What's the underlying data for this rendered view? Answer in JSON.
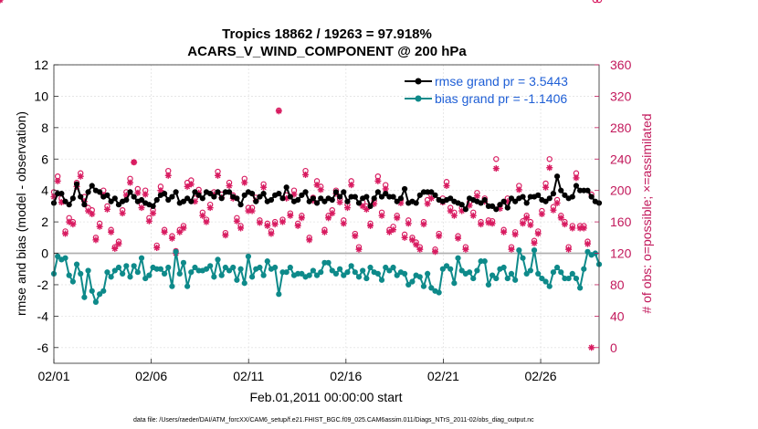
{
  "chart_data": {
    "type": "line",
    "title_line1": "Tropics 18862 / 19263 = 97.918%",
    "title_line2": "ACARS_V_WIND_COMPONENT @ 200 hPa",
    "xlabel": "Feb.01,2011 00:00:00 start",
    "ylabel": "rmse and bias (model - observation)",
    "y2label": "# of obs: o=possible; ×=assimilated",
    "footer": "data file: /Users/raeder/DAI/ATM_forcXX/CAM6_setup/f.e21.FHIST_BGC.f09_025.CAM6assim.011/Diags_NTrS_2011-02/obs_diag_output.nc",
    "xticks": [
      "02/01",
      "02/06",
      "02/11",
      "02/16",
      "02/21",
      "02/26"
    ],
    "xtick_days": [
      0,
      5,
      10,
      15,
      20,
      25
    ],
    "xlim": [
      0,
      28
    ],
    "ylim": [
      -7,
      12
    ],
    "yticks": [
      "12",
      "10",
      "8",
      "6",
      "4",
      "2",
      "0",
      "-2",
      "-4",
      "-6"
    ],
    "ytick_values": [
      12,
      10,
      8,
      6,
      4,
      2,
      0,
      -2,
      -4,
      -6
    ],
    "y2lim": [
      -20,
      360
    ],
    "y2ticks": [
      "360",
      "320",
      "280",
      "240",
      "200",
      "160",
      "120",
      "80",
      "40",
      "0"
    ],
    "y2tick_values": [
      360,
      320,
      280,
      240,
      200,
      160,
      120,
      80,
      40,
      0
    ],
    "legend": [
      {
        "label": "rmse grand pr = 3.5443",
        "color": "#000000"
      },
      {
        "label": "bias grand pr = -1.1406",
        "color": "#0e8a8a"
      }
    ],
    "colors": {
      "rmse": "#000000",
      "bias": "#0e8a8a",
      "obs": "#d81b60",
      "zero": "#b0b0b0"
    },
    "series": [
      {
        "name": "rmse",
        "values": [
          3.2,
          3.8,
          3.8,
          3.3,
          3.1,
          3.5,
          4.4,
          3.6,
          3.1,
          3.9,
          4.3,
          4.0,
          3.9,
          3.6,
          3.7,
          3.3,
          3.5,
          3.1,
          3.3,
          3.4,
          3.9,
          3.6,
          3.3,
          3.4,
          3.2,
          3.1,
          3.0,
          3.4,
          3.7,
          3.8,
          3.4,
          3.6,
          3.9,
          3.2,
          3.3,
          3.5,
          3.3,
          3.9,
          3.7,
          3.5,
          3.9,
          3.8,
          3.6,
          3.9,
          3.5,
          3.9,
          3.9,
          3.6,
          3.5,
          3.1,
          3.7,
          3.9,
          3.8,
          3.3,
          3.6,
          3.8,
          3.3,
          3.4,
          3.7,
          3.8,
          3.5,
          4.2,
          3.6,
          3.3,
          3.4,
          3.7,
          3.9,
          3.3,
          3.5,
          3.2,
          3.5,
          3.3,
          3.5,
          3.4,
          3.9,
          3.6,
          3.9,
          3.3,
          3.6,
          3.6,
          3.2,
          3.5,
          3.6,
          3.0,
          3.5,
          3.9,
          3.6,
          3.8,
          3.6,
          3.6,
          3.3,
          3.5,
          4.1,
          3.2,
          3.3,
          3.2,
          3.7,
          3.9,
          3.9,
          3.9,
          3.7,
          3.4,
          3.3,
          3.4,
          3.5,
          3.3,
          3.2,
          3.1,
          2.8,
          3.5,
          3.4,
          3.3,
          3.2,
          3.4,
          3.0,
          3.0,
          2.8,
          3.1,
          3.3,
          2.9,
          3.5,
          3.3,
          3.5,
          3.6,
          3.2,
          3.6,
          3.6,
          3.7,
          3.4,
          3.3,
          3.5,
          3.8,
          4.9,
          4.0,
          3.7,
          3.5,
          3.6,
          4.3,
          4.0,
          4.0,
          4.0,
          3.6,
          3.3,
          3.2
        ]
      },
      {
        "name": "bias",
        "values": [
          -1.3,
          -0.2,
          -0.4,
          -0.3,
          -1.4,
          -1.8,
          -0.7,
          -1.3,
          -2.8,
          -1.1,
          -2.4,
          -3.1,
          -2.6,
          -2.4,
          -1.2,
          -1.5,
          -1.1,
          -0.9,
          -1.3,
          -0.8,
          -1.5,
          -0.8,
          -1.2,
          -0.3,
          -1.6,
          -1.4,
          -0.9,
          -1.0,
          -1.0,
          -1.3,
          -0.9,
          -2.1,
          0.1,
          -1.3,
          -0.6,
          -2.1,
          -1.2,
          -0.9,
          -1.1,
          -1.1,
          -1.0,
          -0.8,
          -1.5,
          -0.4,
          -1.4,
          -0.9,
          -1.1,
          -0.9,
          -1.7,
          -1.0,
          -1.9,
          -0.2,
          -1.5,
          -1.0,
          -0.9,
          -1.4,
          -0.5,
          -1.0,
          -0.9,
          -2.6,
          -1.2,
          -1.2,
          -0.9,
          -1.4,
          -1.3,
          -1.3,
          -1.5,
          -1.4,
          -1.1,
          -1.4,
          -1.2,
          -0.6,
          -0.6,
          -1.1,
          -1.3,
          -1.0,
          -1.4,
          -1.2,
          -0.8,
          -1.2,
          -1.5,
          -1.1,
          -1.6,
          -0.9,
          -1.2,
          -1.3,
          -1.7,
          -0.9,
          -1.1,
          -0.9,
          -1.4,
          -1.2,
          -1.3,
          -2.0,
          -1.8,
          -1.4,
          -1.5,
          -2.1,
          -1.3,
          -2.2,
          -2.4,
          -2.5,
          -1.0,
          -0.8,
          -1.0,
          -1.9,
          -0.3,
          -1.1,
          -1.3,
          -1.2,
          -1.6,
          -1.1,
          -0.5,
          -0.5,
          -2.0,
          -1.4,
          -1.6,
          -1.0,
          -0.9,
          -1.6,
          -1.3,
          -1.7,
          0.2,
          -0.3,
          -1.3,
          -1.1,
          0.2,
          -1.3,
          -1.6,
          -1.8,
          -2.1,
          -1.2,
          -0.9,
          -1.2,
          -1.6,
          -1.6,
          -1.3,
          -1.6,
          -2.2,
          -1.0,
          0.1,
          -0.1,
          0.0,
          -0.7
        ]
      },
      {
        "name": "obs_possible",
        "values": [
          198,
          218,
          190,
          148,
          165,
          160,
          210,
          222,
          192,
          178,
          175,
          140,
          158,
          200,
          180,
          150,
          128,
          135,
          175,
          198,
          215,
          236,
          202,
          182,
          200,
          165,
          175,
          130,
          205,
          150,
          225,
          142,
          123,
          150,
          155,
          210,
          213,
          190,
          201,
          172,
          163,
          182,
          198,
          224,
          195,
          146,
          210,
          194,
          165,
          155,
          215,
          178,
          178,
          191,
          162,
          208,
          158,
          148,
          160,
          302,
          163,
          194,
          171,
          200,
          158,
          168,
          225,
          140,
          191,
          212,
          205,
          150,
          168,
          175,
          200,
          189,
          162,
          182,
          212,
          145,
          128,
          185,
          180,
          158,
          187,
          218,
          172,
          207,
          150,
          154,
          168,
          188,
          144,
          162,
          140,
          134,
          128,
          160,
          188,
          194,
          125,
          145,
          190,
          211,
          178,
          172,
          142,
          178,
          128,
          185,
          172,
          197,
          160,
          190,
          162,
          161,
          240,
          181,
          150,
          190,
          128,
          147,
          206,
          161,
          168,
          160,
          136,
          148,
          174,
          209,
          240,
          179,
          188,
          168,
          160,
          128,
          155,
          222,
          155,
          155,
          135,
          195
        ]
      },
      {
        "name": "obs_assimilated",
        "values": [
          192,
          212,
          185,
          145,
          160,
          157,
          205,
          218,
          186,
          174,
          170,
          137,
          154,
          194,
          176,
          147,
          126,
          132,
          171,
          194,
          210,
          236,
          197,
          178,
          195,
          161,
          171,
          127,
          200,
          147,
          219,
          139,
          120,
          147,
          152,
          205,
          208,
          186,
          197,
          168,
          160,
          178,
          195,
          219,
          191,
          143,
          206,
          190,
          161,
          152,
          210,
          174,
          174,
          187,
          159,
          204,
          155,
          145,
          157,
          301,
          160,
          190,
          168,
          195,
          155,
          165,
          220,
          137,
          187,
          207,
          201,
          147,
          165,
          171,
          196,
          185,
          158,
          178,
          207,
          142,
          125,
          180,
          176,
          155,
          183,
          212,
          168,
          202,
          147,
          150,
          165,
          184,
          140,
          158,
          137,
          131,
          125,
          157,
          183,
          190,
          122,
          142,
          185,
          206,
          174,
          168,
          139,
          174,
          125,
          181,
          168,
          193,
          157,
          186,
          159,
          158,
          228,
          177,
          147,
          186,
          125,
          144,
          201,
          158,
          165,
          156,
          133,
          145,
          170,
          204,
          229,
          175,
          184,
          165,
          157,
          125,
          152,
          216,
          152,
          152,
          132,
          0
        ]
      }
    ]
  }
}
